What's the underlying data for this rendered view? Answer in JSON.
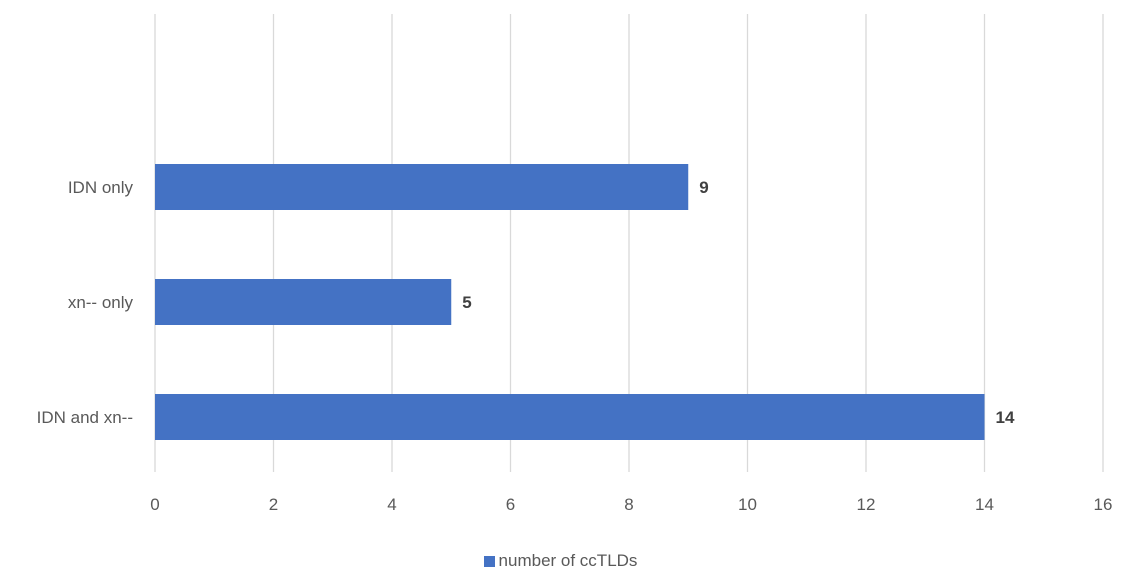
{
  "chart_data": {
    "type": "bar",
    "orientation": "horizontal",
    "categories": [
      "IDN only",
      "xn-- only",
      "IDN and xn--"
    ],
    "series": [
      {
        "name": "number of ccTLDs",
        "values": [
          9,
          5,
          14
        ],
        "color": "#4472C4"
      }
    ],
    "xlim": [
      0,
      16
    ],
    "x_ticks": [
      0,
      2,
      4,
      6,
      8,
      10,
      12,
      14,
      16
    ],
    "grid": true,
    "legend_position": "bottom",
    "data_labels": true
  }
}
